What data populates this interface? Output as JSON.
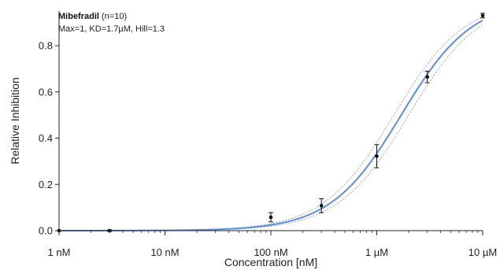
{
  "chart_data": {
    "type": "scatter",
    "x_scale": "log",
    "xlabel": "Concentration [nM]",
    "ylabel": "Relative Inhibition",
    "xlim": [
      1,
      10000
    ],
    "ylim": [
      0,
      0.95
    ],
    "x_ticks": [
      {
        "value": 1,
        "label": "1 nM"
      },
      {
        "value": 10,
        "label": "10 nM"
      },
      {
        "value": 100,
        "label": "100 nM"
      },
      {
        "value": 1000,
        "label": "1 µM"
      },
      {
        "value": 10000,
        "label": "10 µM"
      }
    ],
    "y_ticks": [
      {
        "value": 0,
        "label": "0.0"
      },
      {
        "value": 0.2,
        "label": "0.2"
      },
      {
        "value": 0.4,
        "label": "0.4"
      },
      {
        "value": 0.6,
        "label": "0.6"
      },
      {
        "value": 0.8,
        "label": "0.8"
      }
    ],
    "annotation": {
      "compound": "Mibefradil",
      "n_text": " (n=10)",
      "params": "Max=1, KD=1.7µM, Hill=1.3"
    },
    "fit": {
      "max": 1,
      "kd_nM": 1700,
      "hill": 1.3,
      "color": "#5b8fdc",
      "band_color": "#8a8a9a",
      "band_low_kd_nM": 1450,
      "band_high_kd_nM": 2000
    },
    "points": [
      {
        "x": 1,
        "y": 0.0,
        "err": 0.0
      },
      {
        "x": 3,
        "y": 0.0,
        "err": 0.003
      },
      {
        "x": 100,
        "y": 0.058,
        "err": 0.02
      },
      {
        "x": 300,
        "y": 0.108,
        "err": 0.03
      },
      {
        "x": 1000,
        "y": 0.322,
        "err": 0.05
      },
      {
        "x": 3000,
        "y": 0.665,
        "err": 0.025
      },
      {
        "x": 10000,
        "y": 0.93,
        "err": 0.01
      }
    ],
    "point_color": "#111111",
    "grid": false
  }
}
